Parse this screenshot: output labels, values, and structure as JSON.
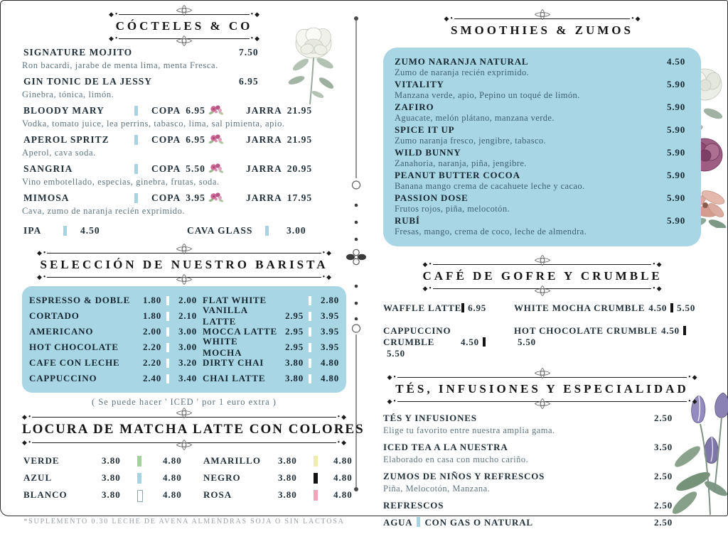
{
  "colors": {
    "accent_blue_box": "#a9d6e5",
    "bar_blue": "#a9d3e3",
    "ink": "#22303a",
    "muted_desc": "#5f7480",
    "matcha_green": "#a5d0a0",
    "matcha_yellow": "#efecae",
    "matcha_blue": "#a9d3e3",
    "matcha_black": "#141414",
    "matcha_white": "#ffffff",
    "matcha_pink": "#f2a3b8"
  },
  "icons": {
    "price-divider-bar": "▎",
    "rose-spray-icon": "❀",
    "header-flourish-icon": "✾",
    "divider-dot": "•",
    "divider-diamond": "◆"
  },
  "left": {
    "cocktails": {
      "title": "CÓCTELES & CO",
      "items": [
        {
          "name": "SIGNATURE MOJITO",
          "price": "7.50",
          "desc": "Ron bacardi, jarabe de menta lima, menta Fresca."
        },
        {
          "name": "GIN TONIC DE LA JESSY",
          "price": "6.95",
          "desc": "Ginebra, tónica, limón."
        },
        {
          "name": "BLOODY MARY",
          "copa_label": "COPA",
          "copa_price": "6.95",
          "jarra_label": "JARRA",
          "jarra_price": "21.95",
          "desc": "Vodka, tomato juice, lea perrins, tabasco, lima, sal pimienta, apio."
        },
        {
          "name": "APEROL SPRITZ",
          "copa_label": "COPA",
          "copa_price": "6.95",
          "jarra_label": "JARRA",
          "jarra_price": "21.95",
          "desc": "Aperol, cava soda."
        },
        {
          "name": "SANGRIA",
          "copa_label": "COPA",
          "copa_price": "5.50",
          "jarra_label": "JARRA",
          "jarra_price": "20.95",
          "desc": "Vino embotellado, especias, ginebra, frutas, soda."
        },
        {
          "name": "MIMOSA",
          "copa_label": "COPA",
          "copa_price": "3.95",
          "jarra_label": "JARRA",
          "jarra_price": "17.95",
          "desc": "Cava, zumo de naranja recién exprimido."
        }
      ],
      "bottom_row": {
        "left_name": "IPA",
        "left_price": "4.50",
        "right_name": "CAVA GLASS",
        "right_price": "3.00"
      }
    },
    "barista": {
      "title": "SELECCIÓN DE NUESTRO BARISTA",
      "left_rows": [
        {
          "name": "ESPRESSO & DOBLE",
          "p1": "1.80",
          "p2": "2.00"
        },
        {
          "name": "CORTADO",
          "p1": "1.80",
          "p2": "2.10"
        },
        {
          "name": "AMERICANO",
          "p1": "2.00",
          "p2": "3.00"
        },
        {
          "name": "HOT CHOCOLATE",
          "p1": "2.20",
          "p2": "3.00"
        },
        {
          "name": "CAFE CON LECHE",
          "p1": "2.20",
          "p2": "3.20"
        },
        {
          "name": "CAPPUCCINO",
          "p1": "2.40",
          "p2": "3.40"
        }
      ],
      "right_rows": [
        {
          "name": "FLAT WHITE",
          "p1": "",
          "p2": "2.80"
        },
        {
          "name": "VANILLA LATTE",
          "p1": "2.95",
          "p2": "3.95"
        },
        {
          "name": "MOCCA LATTE",
          "p1": "2.95",
          "p2": "3.95"
        },
        {
          "name": "WHITE MOCHA",
          "p1": "2.95",
          "p2": "3.95"
        },
        {
          "name": "DIRTY CHAI",
          "p1": "3.80",
          "p2": "4.80"
        },
        {
          "name": "CHAI LATTE",
          "p1": "3.80",
          "p2": "4.80"
        }
      ],
      "note": "( Se puede hacer ' ICED ' por 1 euro extra )"
    },
    "matcha": {
      "title": "LOCURA DE MATCHA LATTE CON COLORES",
      "rows": [
        {
          "left": {
            "name": "VERDE",
            "p1": "3.80",
            "p2": "4.80",
            "bar": "matcha_green"
          },
          "right": {
            "name": "AMARILLO",
            "p1": "3.80",
            "p2": "4.80",
            "bar": "matcha_yellow"
          }
        },
        {
          "left": {
            "name": "AZUL",
            "p1": "3.80",
            "p2": "4.80",
            "bar": "matcha_blue"
          },
          "right": {
            "name": "NEGRO",
            "p1": "3.80",
            "p2": "4.80",
            "bar": "matcha_black"
          }
        },
        {
          "left": {
            "name": "BLANCO",
            "p1": "3.80",
            "p2": "4.80",
            "bar": "matcha_white"
          },
          "right": {
            "name": "ROSA",
            "p1": "3.80",
            "p2": "4.80",
            "bar": "matcha_pink"
          }
        }
      ]
    },
    "footnote": "*SUPLEMENTO 0.30 LECHE DE AVENA ALMENDRAS SOJA O SIN LACTOSA"
  },
  "right": {
    "smoothies": {
      "title": "SMOOTHIES & ZUMOS",
      "items": [
        {
          "name": "ZUMO NARANJA NATURAL",
          "price": "4.50",
          "desc": "Zumo de naranja recién exprimido."
        },
        {
          "name": "VITALITY",
          "price": "5.90",
          "desc": "Manzana verde, apio, Pepino un toqué de limón."
        },
        {
          "name": "ZAFIRO",
          "price": "5.90",
          "desc": "Aguacate, melón plátano, manzana verde."
        },
        {
          "name": "SPICE IT UP",
          "price": "5.90",
          "desc": "Zumo naranja fresco, jengibre, tabasco."
        },
        {
          "name": "WILD BUNNY",
          "price": "5.90",
          "desc": "Zanahoria, naranja, piña, jengibre."
        },
        {
          "name": "PEANUT BUTTER COCOA",
          "price": "5.90",
          "desc": "Banana mango crema de cacahuete leche y cacao."
        },
        {
          "name": "PASSION DOSE",
          "price": "5.90",
          "desc": "Frutos rojos, piña, melocotón."
        },
        {
          "name": "RUBÍ",
          "price": "5.90",
          "desc": "Fresas, mango, crema de coco, leche de almendra."
        }
      ]
    },
    "gofre": {
      "title": "CAFÉ DE GOFRE Y CRUMBLE",
      "cells": [
        {
          "name": "WAFFLE LATTE",
          "p1": "",
          "p2": "6.95"
        },
        {
          "name": "WHITE MOCHA CRUMBLE",
          "p1": "4.50",
          "p2": "5.50"
        },
        {
          "name": "CAPPUCCINO CRUMBLE",
          "p1": "4.50",
          "p2": "5.50"
        },
        {
          "name": "HOT CHOCOLATE CRUMBLE",
          "p1": "4.50",
          "p2": "5.50"
        }
      ]
    },
    "tes": {
      "title": "TÉS, INFUSIONES Y ESPECIALIDAD",
      "items": [
        {
          "name": "TÉS Y INFUSIONES",
          "price": "2.50",
          "desc": "Elige tu favorito entre nuestra amplia gama."
        },
        {
          "name": "ICED TEA A LA NUESTRA",
          "price": "3.50",
          "desc": "Elaborado en casa con mucho cariño."
        },
        {
          "name": "ZUMOS DE NIÑOS Y REFRESCOS",
          "price": "2.50",
          "desc": "Piña, Melocotón, Manzana."
        },
        {
          "name": "REFRESCOS",
          "price": "2.50",
          "desc": ""
        },
        {
          "name_pre": "AGUA",
          "name_post": "CON GAS O NATURAL",
          "price": "2.50",
          "desc": ""
        }
      ]
    }
  }
}
